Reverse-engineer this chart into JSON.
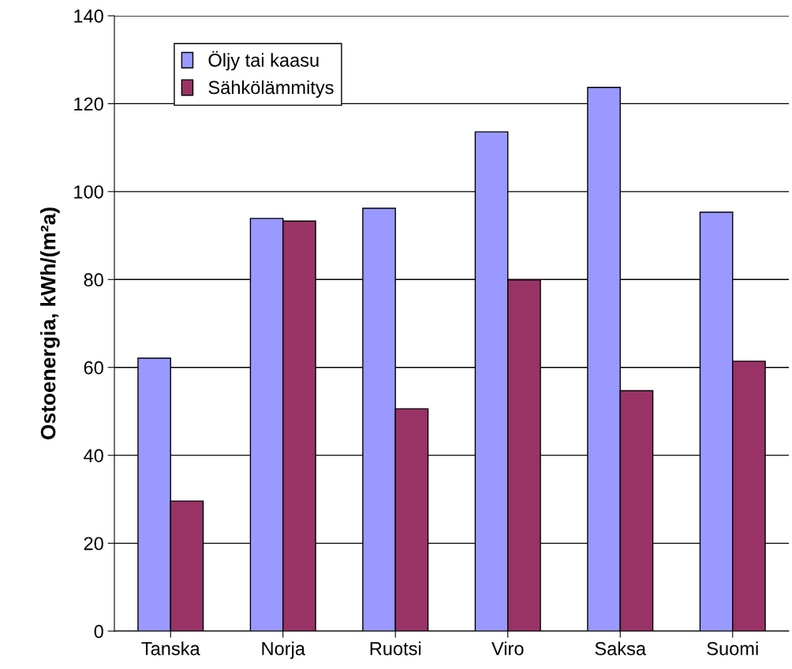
{
  "chart_data": {
    "type": "bar",
    "ylabel": "Ostoenergia, kWh/(m²a)",
    "categories": [
      "Tanska",
      "Norja",
      "Ruotsi",
      "Viro",
      "Saksa",
      "Suomi"
    ],
    "series": [
      {
        "name": "Öljy tai kaasu",
        "color": "#9999ff",
        "values": [
          62.1,
          93.9,
          96.2,
          113.6,
          123.7,
          95.3
        ]
      },
      {
        "name": "Sähkölämmitys",
        "color": "#993366",
        "values": [
          29.6,
          93.3,
          50.6,
          79.9,
          54.7,
          61.4
        ]
      }
    ],
    "ylim": [
      0,
      140
    ],
    "yticks": [
      0,
      20,
      40,
      60,
      80,
      100,
      120,
      140
    ],
    "grid": "y",
    "legend": "top left"
  }
}
